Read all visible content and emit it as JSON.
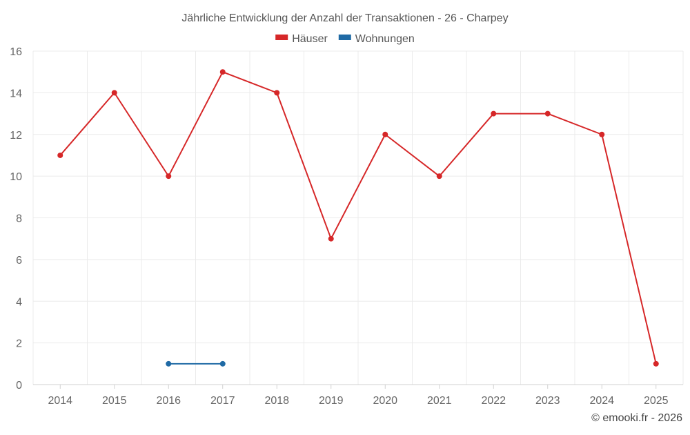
{
  "chart_data": {
    "type": "line",
    "title": "Jährliche Entwicklung der Anzahl der Transaktionen - 26 - Charpey",
    "categories": [
      "2014",
      "2015",
      "2016",
      "2017",
      "2018",
      "2019",
      "2020",
      "2021",
      "2022",
      "2023",
      "2024",
      "2025"
    ],
    "series": [
      {
        "name": "Häuser",
        "color": "#d62728",
        "values": [
          11,
          14,
          10,
          15,
          14,
          7,
          12,
          10,
          13,
          13,
          12,
          1
        ]
      },
      {
        "name": "Wohnungen",
        "color": "#1f6aa5",
        "values": [
          null,
          null,
          1,
          1,
          null,
          null,
          null,
          null,
          null,
          null,
          null,
          null
        ]
      }
    ],
    "ylim": [
      0,
      16
    ],
    "yticks": [
      0,
      2,
      4,
      6,
      8,
      10,
      12,
      14,
      16
    ],
    "grid": true,
    "legend_position": "top-center",
    "xlabel": "",
    "ylabel": ""
  },
  "credit": "© emooki.fr - 2026",
  "colors": {
    "grid": "#ebebeb",
    "axis_text": "#666666",
    "title_text": "#555555"
  }
}
